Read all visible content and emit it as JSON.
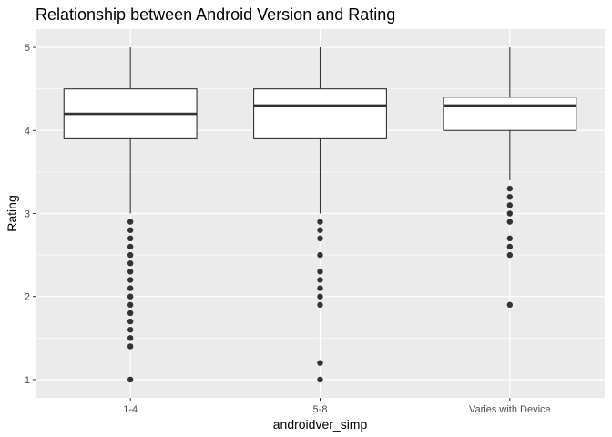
{
  "chart_data": {
    "type": "boxplot",
    "title": "Relationship between Android Version and Rating",
    "xlabel": "androidver_simp",
    "ylabel": "Rating",
    "categories": [
      "1-4",
      "5-8",
      "Varies with Device"
    ],
    "ylim": [
      0.78,
      5.22
    ],
    "yticks": [
      1,
      2,
      3,
      4,
      5
    ],
    "grid": true,
    "colors": {
      "panel": "#ebebeb",
      "grid": "#ffffff",
      "box_fill": "#ffffff",
      "box_stroke": "#333333",
      "outlier": "#333333",
      "tick": "#333333"
    },
    "series": [
      {
        "name": "1-4",
        "whisker_low": 3.0,
        "q1": 3.9,
        "median": 4.2,
        "q3": 4.5,
        "whisker_high": 5.0,
        "outliers": [
          2.9,
          2.8,
          2.7,
          2.6,
          2.5,
          2.4,
          2.3,
          2.2,
          2.1,
          2.0,
          1.9,
          1.8,
          1.7,
          1.6,
          1.5,
          1.4,
          1.0
        ]
      },
      {
        "name": "5-8",
        "whisker_low": 3.0,
        "q1": 3.9,
        "median": 4.3,
        "q3": 4.5,
        "whisker_high": 5.0,
        "outliers": [
          2.9,
          2.8,
          2.7,
          2.5,
          2.3,
          2.2,
          2.1,
          2.0,
          1.9,
          1.2,
          1.0
        ]
      },
      {
        "name": "Varies with Device",
        "whisker_low": 3.4,
        "q1": 4.0,
        "median": 4.3,
        "q3": 4.4,
        "whisker_high": 5.0,
        "outliers": [
          3.3,
          3.2,
          3.1,
          3.0,
          2.9,
          2.7,
          2.6,
          2.5,
          1.9
        ]
      }
    ]
  }
}
